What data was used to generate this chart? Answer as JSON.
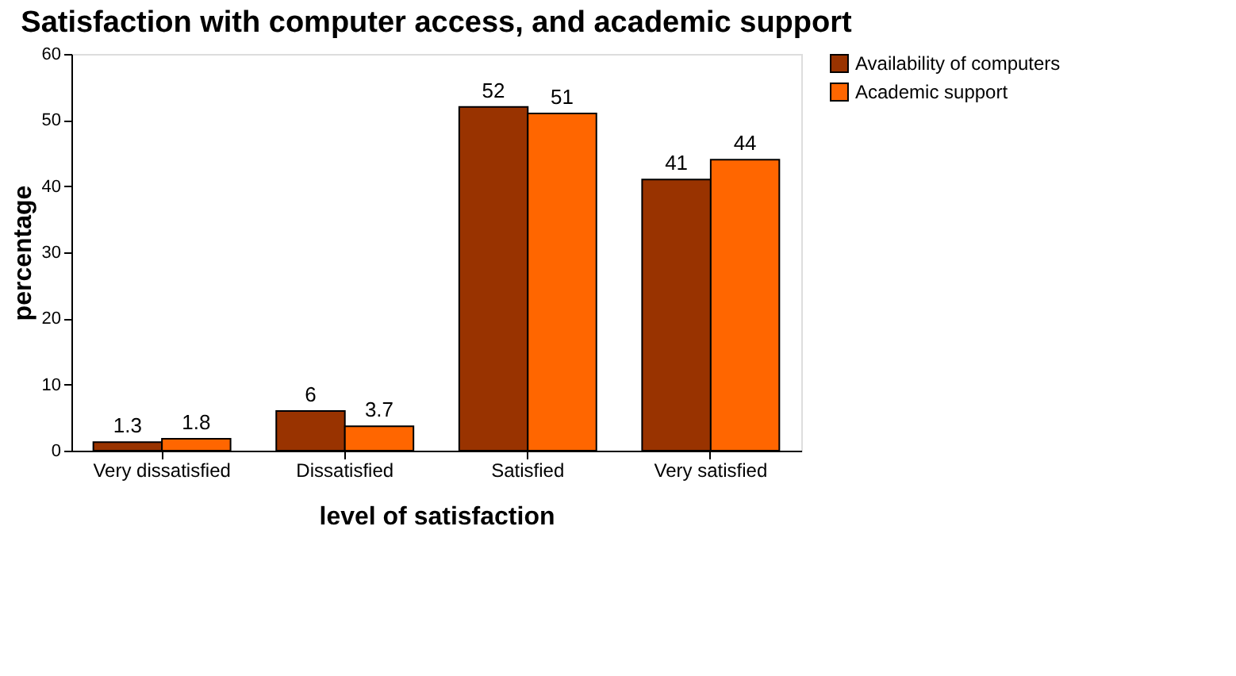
{
  "chart_data": {
    "type": "bar",
    "title": "Satisfaction with computer access, and academic support",
    "xlabel": "level of satisfaction",
    "ylabel": "percentage",
    "categories": [
      "Very dissatisfied",
      "Dissatisfied",
      "Satisfied",
      "Very satisfied"
    ],
    "series": [
      {
        "name": "Availability of computers",
        "color": "#993300",
        "values": [
          1.3,
          6,
          52,
          41
        ]
      },
      {
        "name": "Academic support",
        "color": "#ff6600",
        "values": [
          1.8,
          3.7,
          51,
          44
        ]
      }
    ],
    "ylim": [
      0,
      60
    ],
    "yticks": [
      0,
      10,
      20,
      30,
      40,
      50,
      60
    ],
    "grid": false,
    "legend": "right",
    "data_labels": true
  }
}
